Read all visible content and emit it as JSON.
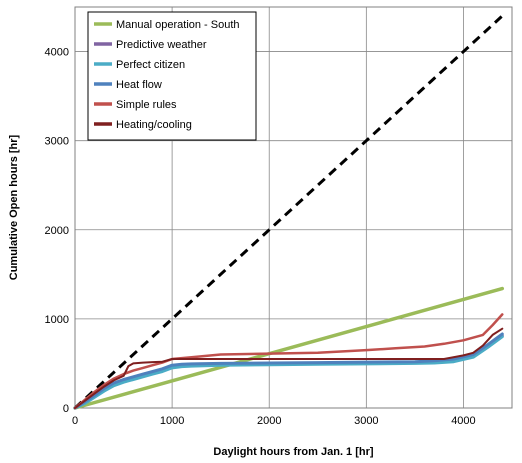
{
  "chart_data": {
    "type": "line",
    "title": "",
    "xlabel": "Daylight hours from Jan. 1 [hr]",
    "ylabel": "Cumulative Open hours [hr]",
    "xlim": [
      0,
      4500
    ],
    "ylim": [
      0,
      4500
    ],
    "x_ticks": [
      "0",
      "1000",
      "2000",
      "3000",
      "4000"
    ],
    "y_ticks": [
      "0",
      "1000",
      "2000",
      "3000",
      "4000"
    ],
    "grid": true,
    "legend_position": "top-left",
    "reference_line": {
      "style": "dashed",
      "color": "#000000",
      "x": [
        0,
        4400
      ],
      "y": [
        0,
        4400
      ]
    },
    "series": [
      {
        "name": "Manual operation - South",
        "color": "#9BBB59",
        "x": [
          0,
          4400
        ],
        "y": [
          0,
          1340
        ]
      },
      {
        "name": "Predictive weather",
        "color": "#8064A2",
        "x": [
          0,
          100,
          200,
          300,
          400,
          500,
          600,
          700,
          800,
          900,
          1000,
          1100,
          1200,
          1500,
          2000,
          2500,
          3000,
          3500,
          3700,
          3900,
          4100,
          4250,
          4400
        ],
        "y": [
          0,
          60,
          130,
          200,
          260,
          300,
          330,
          360,
          390,
          420,
          460,
          475,
          480,
          485,
          490,
          495,
          500,
          505,
          510,
          530,
          580,
          690,
          810
        ]
      },
      {
        "name": "Perfect citizen",
        "color": "#4BACC6",
        "x": [
          0,
          100,
          200,
          300,
          400,
          500,
          600,
          700,
          800,
          900,
          1000,
          1100,
          1200,
          1500,
          2000,
          2500,
          3000,
          3500,
          3700,
          3900,
          4100,
          4250,
          4400
        ],
        "y": [
          0,
          50,
          120,
          190,
          250,
          290,
          320,
          350,
          380,
          410,
          450,
          465,
          470,
          480,
          485,
          490,
          495,
          500,
          505,
          520,
          570,
          680,
          800
        ]
      },
      {
        "name": "Heat flow",
        "color": "#4F81BD",
        "x": [
          0,
          100,
          200,
          300,
          400,
          500,
          600,
          700,
          800,
          900,
          1000,
          1100,
          1200,
          1500,
          2000,
          2500,
          3000,
          3500,
          3700,
          3900,
          4100,
          4250,
          4400
        ],
        "y": [
          0,
          70,
          140,
          220,
          280,
          320,
          350,
          380,
          410,
          440,
          480,
          490,
          495,
          500,
          505,
          510,
          515,
          520,
          530,
          550,
          600,
          710,
          830
        ]
      },
      {
        "name": "Simple rules",
        "color": "#C0504D",
        "x": [
          0,
          100,
          200,
          300,
          400,
          500,
          600,
          700,
          800,
          900,
          1000,
          1200,
          1500,
          2000,
          2500,
          3000,
          3300,
          3600,
          3800,
          4000,
          4200,
          4300,
          4400
        ],
        "y": [
          0,
          90,
          180,
          260,
          330,
          380,
          420,
          450,
          480,
          510,
          550,
          570,
          600,
          610,
          620,
          650,
          670,
          690,
          720,
          760,
          820,
          930,
          1050
        ]
      },
      {
        "name": "Heating/cooling",
        "color": "#7F1F1F",
        "x": [
          0,
          100,
          200,
          300,
          400,
          500,
          550,
          600,
          700,
          800,
          900,
          1000,
          1200,
          1500,
          2000,
          2500,
          3000,
          3500,
          3800,
          4000,
          4100,
          4200,
          4300,
          4400
        ],
        "y": [
          0,
          80,
          160,
          240,
          310,
          360,
          470,
          500,
          510,
          515,
          520,
          550,
          550,
          550,
          550,
          550,
          550,
          550,
          550,
          590,
          620,
          700,
          820,
          890
        ]
      }
    ]
  }
}
